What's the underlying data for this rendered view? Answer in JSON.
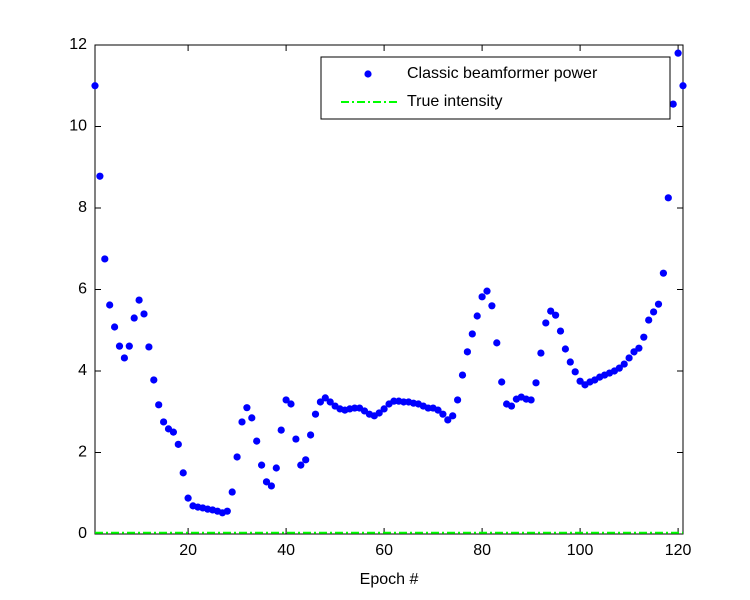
{
  "chart_data": {
    "type": "scatter",
    "xlabel": "Epoch #",
    "xlim": [
      1,
      121
    ],
    "ylim": [
      0,
      12
    ],
    "xticks": [
      20,
      40,
      60,
      80,
      100,
      120
    ],
    "yticks": [
      0,
      2,
      4,
      6,
      8,
      10,
      12
    ],
    "legend": "upper right",
    "series": [
      {
        "name": "Classic beamformer power",
        "color": "#0000ff",
        "style": "dots",
        "x": [
          1,
          2,
          3,
          4,
          5,
          6,
          7,
          8,
          9,
          10,
          11,
          12,
          13,
          14,
          15,
          16,
          17,
          18,
          19,
          20,
          21,
          22,
          23,
          24,
          25,
          26,
          27,
          28,
          29,
          30,
          31,
          32,
          33,
          34,
          35,
          36,
          37,
          38,
          39,
          40,
          41,
          42,
          43,
          44,
          45,
          46,
          47,
          48,
          49,
          50,
          51,
          52,
          53,
          54,
          55,
          56,
          57,
          58,
          59,
          60,
          61,
          62,
          63,
          64,
          65,
          66,
          67,
          68,
          69,
          70,
          71,
          72,
          73,
          74,
          75,
          76,
          77,
          78,
          79,
          80,
          81,
          82,
          83,
          84,
          85,
          86,
          87,
          88,
          89,
          90,
          91,
          92,
          93,
          94,
          95,
          96,
          97,
          98,
          99,
          100,
          101,
          102,
          103,
          104,
          105,
          106,
          107,
          108,
          109,
          110,
          111,
          112,
          113,
          114,
          115,
          116,
          117,
          118,
          119,
          120,
          121
        ],
        "values": [
          11.0,
          8.78,
          6.75,
          5.62,
          5.08,
          4.61,
          4.32,
          4.61,
          5.3,
          5.74,
          5.4,
          4.59,
          3.78,
          3.17,
          2.75,
          2.58,
          2.5,
          2.2,
          1.5,
          0.88,
          0.69,
          0.66,
          0.64,
          0.61,
          0.59,
          0.56,
          0.52,
          0.56,
          1.03,
          1.89,
          2.75,
          3.1,
          2.85,
          2.28,
          1.69,
          1.28,
          1.18,
          1.62,
          2.55,
          3.29,
          3.19,
          2.33,
          1.69,
          1.82,
          2.43,
          2.94,
          3.24,
          3.34,
          3.24,
          3.14,
          3.07,
          3.04,
          3.07,
          3.09,
          3.09,
          3.02,
          2.94,
          2.9,
          2.97,
          3.07,
          3.19,
          3.26,
          3.26,
          3.24,
          3.24,
          3.21,
          3.19,
          3.14,
          3.09,
          3.09,
          3.04,
          2.94,
          2.8,
          2.9,
          3.29,
          3.9,
          4.47,
          4.91,
          5.35,
          5.82,
          5.96,
          5.6,
          4.69,
          3.73,
          3.19,
          3.14,
          3.31,
          3.36,
          3.31,
          3.29,
          3.71,
          4.44,
          5.18,
          5.47,
          5.37,
          4.98,
          4.54,
          4.22,
          3.98,
          3.75,
          3.66,
          3.73,
          3.78,
          3.85,
          3.9,
          3.95,
          4.0,
          4.07,
          4.17,
          4.32,
          4.47,
          4.56,
          4.83,
          5.25,
          5.45,
          5.64,
          6.4,
          8.25,
          10.55,
          11.8,
          11.0
        ]
      },
      {
        "name": "True intensity",
        "color": "#00ff00",
        "style": "dashdot",
        "x": [
          1,
          121
        ],
        "values": [
          0.03,
          0.03
        ]
      }
    ]
  }
}
